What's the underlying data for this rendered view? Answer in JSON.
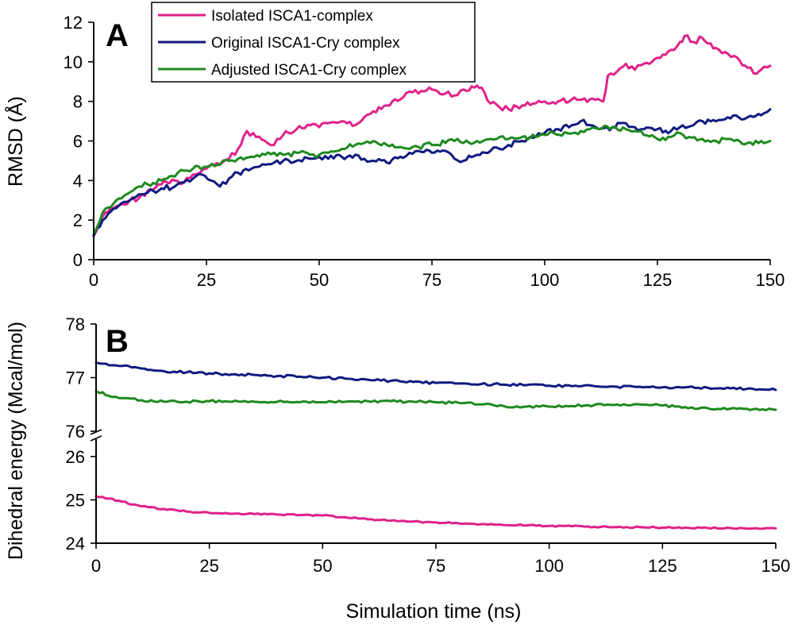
{
  "xlabel": "Simulation time (ns)",
  "colors": {
    "isolated": "#e0218a",
    "original": "#101a80",
    "adjusted": "#1e8a1e"
  },
  "legend": [
    {
      "name": "Isolated ISCA1-complex",
      "color": "#e0218a"
    },
    {
      "name": "Original ISCA1-Cry complex",
      "color": "#101a80"
    },
    {
      "name": "Adjusted ISCA1-Cry complex",
      "color": "#1e8a1e"
    }
  ],
  "chart_data": [
    {
      "panel": "A",
      "type": "line",
      "ylabel": "RMSD (Å)",
      "xlim": [
        0,
        150
      ],
      "ylim": [
        0,
        12
      ],
      "xticks": [
        "0",
        "25",
        "50",
        "75",
        "100",
        "125",
        "150"
      ],
      "yticks": [
        "0",
        "2",
        "4",
        "6",
        "8",
        "10",
        "12"
      ],
      "legend_position": "top-center",
      "series": [
        {
          "name": "Isolated ISCA1-complex",
          "color": "#e0218a",
          "x": [
            0,
            2,
            5,
            8,
            10,
            12,
            15,
            18,
            20,
            22,
            25,
            28,
            30,
            32,
            34,
            36,
            38,
            40,
            42,
            45,
            48,
            50,
            52,
            55,
            58,
            60,
            62,
            65,
            68,
            70,
            72,
            75,
            78,
            80,
            82,
            85,
            86,
            88,
            90,
            92,
            95,
            98,
            100,
            103,
            106,
            110,
            113,
            114,
            116,
            118,
            120,
            122,
            125,
            128,
            130,
            131,
            133,
            135,
            138,
            140,
            142,
            145,
            147,
            148,
            150
          ],
          "y": [
            1.2,
            2.2,
            2.7,
            3.0,
            3.1,
            3.5,
            3.8,
            4.0,
            3.9,
            4.3,
            4.6,
            4.8,
            5.1,
            5.6,
            6.5,
            6.2,
            6.0,
            5.8,
            6.3,
            6.6,
            6.8,
            6.7,
            6.9,
            7.0,
            6.8,
            7.2,
            7.5,
            7.8,
            8.1,
            8.5,
            8.4,
            8.6,
            8.4,
            8.3,
            8.6,
            8.8,
            8.7,
            7.9,
            7.7,
            7.6,
            7.8,
            7.9,
            8.0,
            8.0,
            8.1,
            8.1,
            8.0,
            9.3,
            9.5,
            9.9,
            9.6,
            9.9,
            10.2,
            10.6,
            11.0,
            11.3,
            11.0,
            11.2,
            10.7,
            10.5,
            10.3,
            9.7,
            9.4,
            9.6,
            9.8
          ]
        },
        {
          "name": "Original ISCA1-Cry complex",
          "color": "#101a80",
          "x": [
            0,
            2,
            5,
            8,
            10,
            12,
            15,
            18,
            20,
            22,
            24,
            26,
            28,
            30,
            32,
            35,
            38,
            40,
            42,
            45,
            48,
            50,
            52,
            55,
            58,
            60,
            62,
            65,
            68,
            70,
            72,
            75,
            78,
            80,
            82,
            85,
            88,
            90,
            92,
            95,
            98,
            100,
            103,
            106,
            108,
            110,
            112,
            115,
            118,
            120,
            122,
            125,
            128,
            130,
            133,
            135,
            138,
            140,
            143,
            145,
            148,
            150
          ],
          "y": [
            1.2,
            2.0,
            2.6,
            3.0,
            3.3,
            3.4,
            3.6,
            3.7,
            3.9,
            4.1,
            4.3,
            4.0,
            3.7,
            4.1,
            4.4,
            4.6,
            4.8,
            4.9,
            5.0,
            5.0,
            5.1,
            5.2,
            5.1,
            5.2,
            5.3,
            5.1,
            5.0,
            4.9,
            5.2,
            5.4,
            5.5,
            5.4,
            5.5,
            5.1,
            5.0,
            5.3,
            5.5,
            5.6,
            5.8,
            6.0,
            6.2,
            6.4,
            6.6,
            6.8,
            7.0,
            6.8,
            6.6,
            6.7,
            6.9,
            6.7,
            6.6,
            6.6,
            6.5,
            6.7,
            6.8,
            7.0,
            7.0,
            7.1,
            7.2,
            7.2,
            7.3,
            7.6
          ]
        },
        {
          "name": "Adjusted ISCA1-Cry complex",
          "color": "#1e8a1e",
          "x": [
            0,
            2,
            5,
            8,
            10,
            12,
            15,
            18,
            20,
            22,
            25,
            28,
            30,
            32,
            35,
            38,
            40,
            42,
            45,
            48,
            50,
            52,
            55,
            58,
            60,
            62,
            65,
            68,
            70,
            72,
            75,
            78,
            80,
            82,
            85,
            88,
            90,
            92,
            95,
            98,
            100,
            102,
            105,
            108,
            110,
            112,
            115,
            118,
            120,
            122,
            125,
            128,
            130,
            132,
            135,
            138,
            140,
            142,
            145,
            148,
            150
          ],
          "y": [
            1.3,
            2.4,
            3.0,
            3.4,
            3.7,
            3.8,
            4.0,
            4.2,
            4.5,
            4.6,
            4.7,
            4.8,
            5.0,
            5.1,
            5.2,
            5.3,
            5.4,
            5.3,
            5.4,
            5.3,
            5.3,
            5.4,
            5.6,
            5.8,
            5.9,
            6.0,
            5.8,
            5.7,
            5.6,
            5.7,
            5.8,
            5.9,
            6.0,
            5.9,
            6.0,
            6.1,
            6.2,
            6.1,
            6.2,
            6.2,
            6.3,
            6.4,
            6.4,
            6.5,
            6.6,
            6.6,
            6.7,
            6.6,
            6.5,
            6.3,
            6.1,
            6.2,
            6.4,
            6.2,
            6.1,
            6.0,
            6.1,
            6.0,
            5.9,
            6.0,
            6.0
          ]
        }
      ]
    },
    {
      "panel": "B",
      "type": "line",
      "ylabel": "Dihedral energy (Mcal/mol)",
      "xlim": [
        0,
        150
      ],
      "axis_break": true,
      "upper_ylim": [
        76,
        78
      ],
      "lower_ylim": [
        24,
        26.4
      ],
      "xticks": [
        "0",
        "25",
        "50",
        "75",
        "100",
        "125",
        "150"
      ],
      "upper_yticks": [
        "76",
        "77",
        "78"
      ],
      "lower_yticks": [
        "24",
        "25",
        "26"
      ],
      "series": [
        {
          "name": "Original ISCA1-Cry complex",
          "color": "#101a80",
          "x": [
            0,
            5,
            10,
            15,
            20,
            25,
            30,
            35,
            40,
            45,
            50,
            55,
            60,
            65,
            70,
            75,
            80,
            85,
            90,
            95,
            100,
            105,
            110,
            115,
            120,
            125,
            130,
            135,
            140,
            145,
            150
          ],
          "y": [
            77.28,
            77.22,
            77.17,
            77.12,
            77.1,
            77.08,
            77.06,
            77.05,
            77.03,
            77.02,
            77.0,
            76.98,
            76.96,
            76.94,
            76.92,
            76.9,
            76.89,
            76.88,
            76.87,
            76.86,
            76.85,
            76.84,
            76.84,
            76.83,
            76.83,
            76.82,
            76.82,
            76.81,
            76.8,
            76.79,
            76.77
          ]
        },
        {
          "name": "Adjusted ISCA1-Cry complex",
          "color": "#1e8a1e",
          "x": [
            0,
            5,
            10,
            15,
            20,
            25,
            30,
            35,
            40,
            45,
            50,
            55,
            60,
            65,
            70,
            75,
            80,
            85,
            90,
            95,
            100,
            105,
            110,
            115,
            120,
            125,
            130,
            135,
            140,
            145,
            150
          ],
          "y": [
            76.75,
            76.62,
            76.58,
            76.55,
            76.55,
            76.56,
            76.55,
            76.55,
            76.55,
            76.54,
            76.54,
            76.55,
            76.56,
            76.56,
            76.55,
            76.54,
            76.53,
            76.5,
            76.47,
            76.46,
            76.46,
            76.47,
            76.49,
            76.5,
            76.5,
            76.48,
            76.45,
            76.43,
            76.42,
            76.41,
            76.4
          ]
        },
        {
          "name": "Isolated ISCA1-complex",
          "color": "#e0218a",
          "x": [
            0,
            5,
            10,
            15,
            20,
            25,
            30,
            35,
            40,
            45,
            50,
            55,
            60,
            65,
            70,
            75,
            80,
            85,
            90,
            95,
            100,
            105,
            110,
            115,
            120,
            125,
            130,
            135,
            140,
            145,
            150
          ],
          "y": [
            25.08,
            24.98,
            24.85,
            24.79,
            24.73,
            24.7,
            24.68,
            24.67,
            24.66,
            24.65,
            24.64,
            24.6,
            24.55,
            24.52,
            24.5,
            24.48,
            24.46,
            24.44,
            24.42,
            24.41,
            24.4,
            24.39,
            24.38,
            24.37,
            24.37,
            24.36,
            24.36,
            24.35,
            24.35,
            24.34,
            24.34
          ]
        }
      ]
    }
  ]
}
